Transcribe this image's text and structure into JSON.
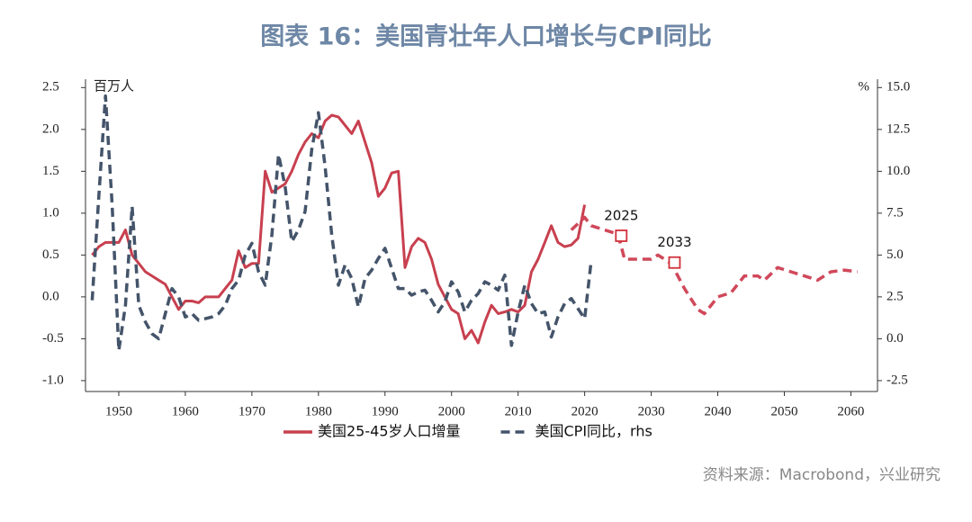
{
  "chart_data": {
    "type": "line",
    "title": "图表 16：美国青壮年人口增长与CPI同比",
    "y_unit": "百万人",
    "y2_unit": "%",
    "source": "资料来源：Macrobond，兴业研究",
    "xlim": [
      1945,
      2064
    ],
    "xticks": [
      1950,
      1960,
      1970,
      1980,
      1990,
      2000,
      2010,
      2020,
      2030,
      2040,
      2050,
      2060
    ],
    "ylim": [
      -1.13,
      2.6
    ],
    "yticks": [
      {
        "value": -1.0,
        "label": "-1.0"
      },
      {
        "value": -0.5,
        "label": "-0.5"
      },
      {
        "value": 0,
        "label": "0.0"
      },
      {
        "value": 0.5,
        "label": "0.5"
      },
      {
        "value": 1.0,
        "label": "1.0"
      },
      {
        "value": 1.5,
        "label": "1.5"
      },
      {
        "value": 2.0,
        "label": "2.0"
      },
      {
        "value": 2.5,
        "label": "2.5"
      }
    ],
    "y2lim": [
      -3.15,
      15.5
    ],
    "y2ticks": [
      {
        "value": -2.5,
        "label": "-2.5"
      },
      {
        "value": 0,
        "label": "0.0"
      },
      {
        "value": 2.5,
        "label": "2.5"
      },
      {
        "value": 5,
        "label": "5.0"
      },
      {
        "value": 7.5,
        "label": "7.5"
      },
      {
        "value": 10,
        "label": "10.0"
      },
      {
        "value": 12.5,
        "label": "12.5"
      },
      {
        "value": 15,
        "label": "15.0"
      }
    ],
    "series": [
      {
        "name": "美国25-45岁人口增量",
        "color": "#c8404f",
        "style": "solid",
        "x": [
          1946,
          1947,
          1948,
          1949,
          1950,
          1951,
          1952,
          1953,
          1954,
          1955,
          1956,
          1957,
          1958,
          1959,
          1960,
          1961,
          1962,
          1963,
          1964,
          1965,
          1966,
          1967,
          1968,
          1969,
          1970,
          1971,
          1972,
          1973,
          1974,
          1975,
          1976,
          1977,
          1978,
          1979,
          1980,
          1981,
          1982,
          1983,
          1984,
          1985,
          1986,
          1987,
          1988,
          1989,
          1990,
          1991,
          1992,
          1993,
          1994,
          1995,
          1996,
          1997,
          1998,
          1999,
          2000,
          2001,
          2002,
          2003,
          2004,
          2005,
          2006,
          2007,
          2008,
          2009,
          2010,
          2011,
          2012,
          2013,
          2014,
          2015,
          2016,
          2017,
          2018,
          2019,
          2020
        ],
        "values": [
          0.5,
          0.6,
          0.65,
          0.65,
          0.65,
          0.8,
          0.5,
          0.4,
          0.3,
          0.25,
          0.2,
          0.15,
          0.0,
          -0.15,
          -0.05,
          -0.05,
          -0.07,
          0.0,
          0.0,
          0.0,
          0.1,
          0.2,
          0.55,
          0.35,
          0.4,
          0.4,
          1.5,
          1.25,
          1.3,
          1.35,
          1.5,
          1.7,
          1.85,
          1.95,
          1.9,
          2.1,
          2.17,
          2.15,
          2.05,
          1.95,
          2.1,
          1.85,
          1.6,
          1.2,
          1.3,
          1.48,
          1.5,
          0.35,
          0.6,
          0.7,
          0.65,
          0.45,
          0.15,
          0.0,
          -0.15,
          -0.2,
          -0.5,
          -0.4,
          -0.55,
          -0.3,
          -0.1,
          -0.2,
          -0.18,
          -0.15,
          -0.18,
          -0.1,
          0.3,
          0.45,
          0.65,
          0.85,
          0.65,
          0.6,
          0.62,
          0.7,
          1.1
        ]
      },
      {
        "name": "美国CPI同比，rhs",
        "color": "#44546a",
        "style": "dashed",
        "axis": "y2",
        "x": [
          1946,
          1947,
          1948,
          1949,
          1950,
          1951,
          1952,
          1953,
          1954,
          1955,
          1956,
          1957,
          1958,
          1959,
          1960,
          1961,
          1962,
          1963,
          1964,
          1965,
          1966,
          1967,
          1968,
          1969,
          1970,
          1971,
          1972,
          1973,
          1974,
          1975,
          1976,
          1977,
          1978,
          1979,
          1980,
          1981,
          1982,
          1983,
          1984,
          1985,
          1986,
          1987,
          1988,
          1989,
          1990,
          1991,
          1992,
          1993,
          1994,
          1995,
          1996,
          1997,
          1998,
          1999,
          2000,
          2001,
          2002,
          2003,
          2004,
          2005,
          2006,
          2007,
          2008,
          2009,
          2010,
          2011,
          2012,
          2013,
          2014,
          2015,
          2016,
          2017,
          2018,
          2019,
          2020,
          2021
        ],
        "values": [
          2.3,
          8.5,
          14.5,
          8,
          -0.7,
          2,
          7.9,
          2,
          1,
          0.3,
          0,
          1.5,
          3,
          2.5,
          1.3,
          1.5,
          1.1,
          1.2,
          1.3,
          1.5,
          2,
          3,
          3.5,
          5,
          5.7,
          4,
          3.2,
          6.2,
          11,
          9.1,
          5.8,
          6.5,
          7.6,
          11.3,
          13.5,
          10.3,
          6.2,
          3.2,
          4.4,
          3.6,
          1.9,
          3.6,
          4.1,
          4.8,
          5.4,
          4.2,
          3,
          3,
          2.6,
          2.8,
          2.9,
          2.3,
          1.6,
          2.2,
          3.4,
          2.8,
          1.6,
          2.3,
          2.7,
          3.4,
          3.2,
          2.9,
          3.8,
          -0.4,
          1.6,
          3.2,
          2.1,
          1.5,
          1.6,
          0.1,
          1.3,
          2.1,
          2.4,
          1.8,
          1.2,
          4.7
        ]
      },
      {
        "color": "#d0485a",
        "style": "dashed",
        "x": [
          2018,
          2020,
          2021,
          2023,
          2025,
          2026,
          2028,
          2030,
          2031,
          2033,
          2035,
          2037,
          2038,
          2040,
          2042,
          2044,
          2046,
          2047,
          2049,
          2051,
          2053,
          2055,
          2057,
          2059,
          2061
        ],
        "values": [
          0.8,
          0.95,
          0.85,
          0.8,
          0.75,
          0.45,
          0.45,
          0.45,
          0.5,
          0.4,
          0.1,
          -0.15,
          -0.2,
          0.0,
          0.05,
          0.25,
          0.25,
          0.2,
          0.35,
          0.3,
          0.25,
          0.2,
          0.3,
          0.32,
          0.3
        ]
      }
    ],
    "annotations": [
      {
        "text": "2025",
        "x": 2025.5,
        "y": 0.73
      },
      {
        "text": "2033",
        "x": 2033.5,
        "y": 0.41
      }
    ]
  }
}
